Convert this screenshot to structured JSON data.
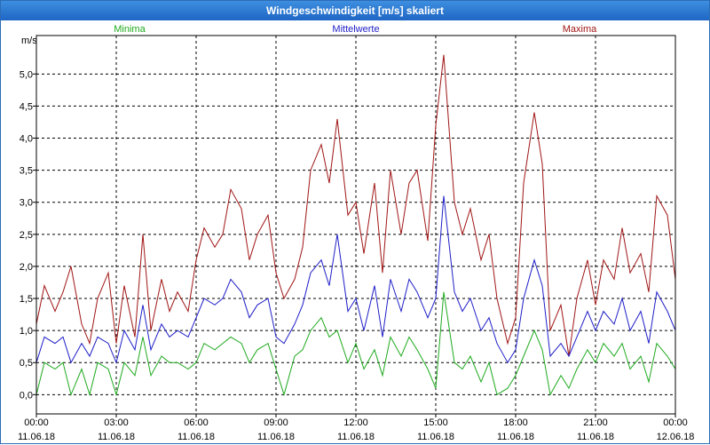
{
  "window": {
    "title": "Windgeschwindigkeit [m/s] skaliert"
  },
  "legend": {
    "min": "Minima",
    "mean": "Mittelwerte",
    "max": "Maxima"
  },
  "colors": {
    "min": "#1faa1f",
    "mean": "#1e1ec8",
    "max": "#a01515",
    "grid": "#000000"
  },
  "chart_data": {
    "type": "line",
    "title": "Windgeschwindigkeit [m/s] skaliert",
    "ylabel": "m/s",
    "ylim": [
      -0.3,
      5.6
    ],
    "xlim": [
      0,
      24
    ],
    "ytick_values": [
      0,
      0.5,
      1,
      1.5,
      2,
      2.5,
      3,
      3.5,
      4,
      4.5,
      5
    ],
    "ytick_labels": [
      "0,0",
      "0,5",
      "1,0",
      "1,5",
      "2,0",
      "2,5",
      "3,0",
      "3,5",
      "4,0",
      "4,5",
      "5,0"
    ],
    "xtick_values": [
      0,
      3,
      6,
      9,
      12,
      15,
      18,
      21,
      24
    ],
    "xtick_times": [
      "00:00",
      "03:00",
      "06:00",
      "09:00",
      "12:00",
      "15:00",
      "18:00",
      "21:00",
      "00:00"
    ],
    "xtick_dates": [
      "11.06.18",
      "11.06.18",
      "11.06.18",
      "11.06.18",
      "11.06.18",
      "11.06.18",
      "11.06.18",
      "11.06.18",
      "12.06.18"
    ],
    "x_unit": "hours since 11.06.18 00:00",
    "series": [
      {
        "name": "Maxima",
        "x": [
          0,
          0.3,
          0.7,
          1,
          1.3,
          1.7,
          2,
          2.3,
          2.7,
          3,
          3.3,
          3.7,
          4,
          4.3,
          4.7,
          5,
          5.3,
          5.7,
          6,
          6.3,
          6.7,
          7,
          7.3,
          7.7,
          8,
          8.3,
          8.7,
          9,
          9.3,
          9.7,
          10,
          10.3,
          10.7,
          11,
          11.3,
          11.7,
          12,
          12.3,
          12.7,
          13,
          13.3,
          13.7,
          14,
          14.3,
          14.7,
          15,
          15.3,
          15.7,
          16,
          16.3,
          16.7,
          17,
          17.3,
          17.7,
          18,
          18.3,
          18.7,
          19,
          19.3,
          19.7,
          20,
          20.3,
          20.7,
          21,
          21.3,
          21.7,
          22,
          22.3,
          22.7,
          23,
          23.3,
          23.7,
          24
        ],
        "values": [
          1.1,
          1.7,
          1.3,
          1.6,
          2.0,
          1.1,
          0.8,
          1.5,
          1.9,
          0.8,
          1.7,
          0.9,
          2.5,
          1.0,
          1.8,
          1.3,
          1.6,
          1.3,
          2.1,
          2.6,
          2.3,
          2.5,
          3.2,
          2.9,
          2.1,
          2.5,
          2.8,
          1.9,
          1.5,
          1.8,
          2.3,
          3.5,
          3.9,
          3.3,
          4.3,
          2.8,
          3.0,
          2.2,
          3.3,
          1.9,
          3.5,
          2.5,
          3.3,
          3.5,
          2.4,
          4.2,
          5.3,
          3.0,
          2.5,
          2.9,
          2.1,
          2.5,
          1.5,
          0.8,
          1.2,
          3.3,
          4.4,
          3.6,
          1.0,
          1.4,
          0.6,
          1.5,
          2.1,
          1.4,
          2.1,
          1.8,
          2.6,
          1.9,
          2.2,
          1.6,
          3.1,
          2.8,
          1.8
        ]
      },
      {
        "name": "Mittelwerte",
        "x": [
          0,
          0.3,
          0.7,
          1,
          1.3,
          1.7,
          2,
          2.3,
          2.7,
          3,
          3.3,
          3.7,
          4,
          4.3,
          4.7,
          5,
          5.3,
          5.7,
          6,
          6.3,
          6.7,
          7,
          7.3,
          7.7,
          8,
          8.3,
          8.7,
          9,
          9.3,
          9.7,
          10,
          10.3,
          10.7,
          11,
          11.3,
          11.7,
          12,
          12.3,
          12.7,
          13,
          13.3,
          13.7,
          14,
          14.3,
          14.7,
          15,
          15.3,
          15.7,
          16,
          16.3,
          16.7,
          17,
          17.3,
          17.7,
          18,
          18.3,
          18.7,
          19,
          19.3,
          19.7,
          20,
          20.3,
          20.7,
          21,
          21.3,
          21.7,
          22,
          22.3,
          22.7,
          23,
          23.3,
          23.7,
          24
        ],
        "values": [
          0.5,
          0.9,
          0.8,
          0.9,
          0.5,
          0.8,
          0.6,
          0.9,
          0.8,
          0.5,
          1.0,
          0.7,
          1.4,
          0.7,
          1.1,
          0.9,
          1.0,
          0.9,
          1.2,
          1.5,
          1.4,
          1.5,
          1.8,
          1.6,
          1.2,
          1.4,
          1.5,
          0.9,
          0.8,
          1.1,
          1.4,
          1.9,
          2.1,
          1.7,
          2.5,
          1.3,
          1.5,
          1.0,
          1.7,
          0.9,
          1.8,
          1.3,
          1.8,
          1.6,
          1.2,
          1.5,
          3.1,
          1.6,
          1.3,
          1.5,
          1.0,
          1.2,
          0.8,
          0.5,
          0.7,
          1.5,
          2.1,
          1.7,
          0.6,
          0.8,
          0.6,
          0.9,
          1.3,
          1.0,
          1.3,
          1.1,
          1.5,
          1.0,
          1.3,
          0.8,
          1.6,
          1.3,
          1.0
        ]
      },
      {
        "name": "Minima",
        "x": [
          0,
          0.3,
          0.7,
          1,
          1.3,
          1.7,
          2,
          2.3,
          2.7,
          3,
          3.3,
          3.7,
          4,
          4.3,
          4.7,
          5,
          5.3,
          5.7,
          6,
          6.3,
          6.7,
          7,
          7.3,
          7.7,
          8,
          8.3,
          8.7,
          9,
          9.3,
          9.7,
          10,
          10.3,
          10.7,
          11,
          11.3,
          11.7,
          12,
          12.3,
          12.7,
          13,
          13.3,
          13.7,
          14,
          14.3,
          14.7,
          15,
          15.3,
          15.7,
          16,
          16.3,
          16.7,
          17,
          17.3,
          17.7,
          18,
          18.3,
          18.7,
          19,
          19.3,
          19.7,
          20,
          20.3,
          20.7,
          21,
          21.3,
          21.7,
          22,
          22.3,
          22.7,
          23,
          23.3,
          23.7,
          24
        ],
        "values": [
          0.0,
          0.5,
          0.4,
          0.5,
          0.0,
          0.4,
          0.0,
          0.5,
          0.4,
          0.0,
          0.5,
          0.3,
          0.9,
          0.3,
          0.6,
          0.5,
          0.5,
          0.4,
          0.5,
          0.8,
          0.7,
          0.8,
          0.9,
          0.8,
          0.5,
          0.7,
          0.8,
          0.4,
          0.0,
          0.6,
          0.7,
          1.0,
          1.2,
          0.9,
          1.0,
          0.5,
          0.8,
          0.4,
          0.7,
          0.3,
          0.9,
          0.6,
          0.9,
          0.7,
          0.4,
          0.1,
          1.6,
          0.5,
          0.4,
          0.6,
          0.2,
          0.5,
          0.0,
          0.1,
          0.3,
          0.6,
          1.0,
          0.7,
          0.0,
          0.3,
          0.1,
          0.4,
          0.7,
          0.5,
          0.8,
          0.6,
          0.8,
          0.4,
          0.6,
          0.2,
          0.8,
          0.6,
          0.4
        ]
      }
    ]
  }
}
